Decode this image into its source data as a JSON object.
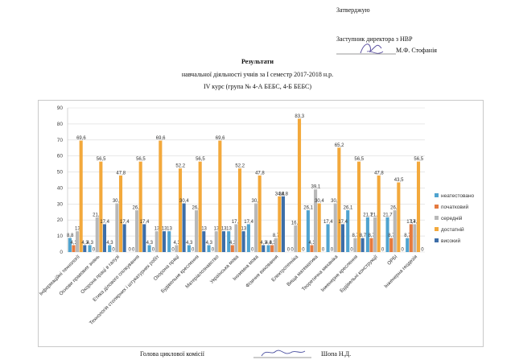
{
  "header": {
    "approve_line1": "Затверджую",
    "approve_line2": "Заступник директора з НВР",
    "approve_name": "М.Ф. Стофанія",
    "title": "Результати",
    "subtitle": "навчальної діяльності учнів за І семестр 2017-2018 н.р.",
    "group": "ІV курс (група № 4-А БЕБС, 4-Б БЕБС)"
  },
  "footer": {
    "role": "Голова циклової комісії",
    "name": "Шопа Н.Д."
  },
  "colors": {
    "неатестовано": "#4fa3cf",
    "початковий": "#e57a3f",
    "середній": "#b8b8b8",
    "достатній": "#f3a93c",
    "високий": "#3d6ea8"
  },
  "chart_data": {
    "type": "bar",
    "ylim": [
      0,
      90
    ],
    "yticks": [
      0,
      10,
      20,
      30,
      40,
      50,
      60,
      70,
      80,
      90
    ],
    "grid": true,
    "legend_position": "right",
    "categories": [
      "Інформаційні технології",
      "Основи правових знань",
      "Охорона праці в галузі",
      "Етика ділового спілкування",
      "Технологія столярних і штукатурних робіт",
      "Охорона праці",
      "Будівельне креслення",
      "Матеріалознавство",
      "Українська мова",
      "Іноземна мова",
      "Фізичне виховання",
      "Електротехніка",
      "Вища математика",
      "Теоретична механіка",
      "Інженерне креслення",
      "Будівельні конструкції",
      "ОРБІ",
      "Інженерна геодезія"
    ],
    "series": [
      {
        "name": "неатестовано",
        "values": [
          8.8,
          4.3,
          4.3,
          0,
          4.3,
          13,
          4.3,
          4.3,
          13,
          17.4,
          4.3,
          0,
          26.1,
          17.4,
          26.1,
          21.7,
          21.7,
          8.7
        ]
      },
      {
        "name": "початковий",
        "values": [
          4.3,
          0,
          0,
          0,
          0,
          0,
          0,
          0,
          4.3,
          0,
          4.3,
          0,
          4.3,
          0,
          0,
          8.7,
          8.7,
          17.4
        ]
      },
      {
        "name": "середній",
        "values": [
          13,
          21.7,
          30.4,
          26.1,
          13,
          4.3,
          26.1,
          13,
          17.4,
          30.4,
          8.7,
          16.7,
          39.1,
          30.4,
          8.7,
          21.7,
          26.1,
          17.4
        ]
      },
      {
        "name": "достатній",
        "values": [
          69.6,
          56.5,
          47.8,
          56.5,
          69.6,
          52.2,
          56.5,
          69.6,
          52.2,
          47.8,
          34.8,
          83.3,
          30.4,
          65.2,
          56.5,
          47.8,
          43.5,
          56.5
        ]
      },
      {
        "name": "високий",
        "values": [
          4.3,
          17.4,
          17.4,
          17.4,
          13,
          30.4,
          13,
          13,
          13,
          4.3,
          34.8,
          0,
          0,
          17.4,
          8.7,
          0,
          0,
          0
        ]
      }
    ]
  }
}
